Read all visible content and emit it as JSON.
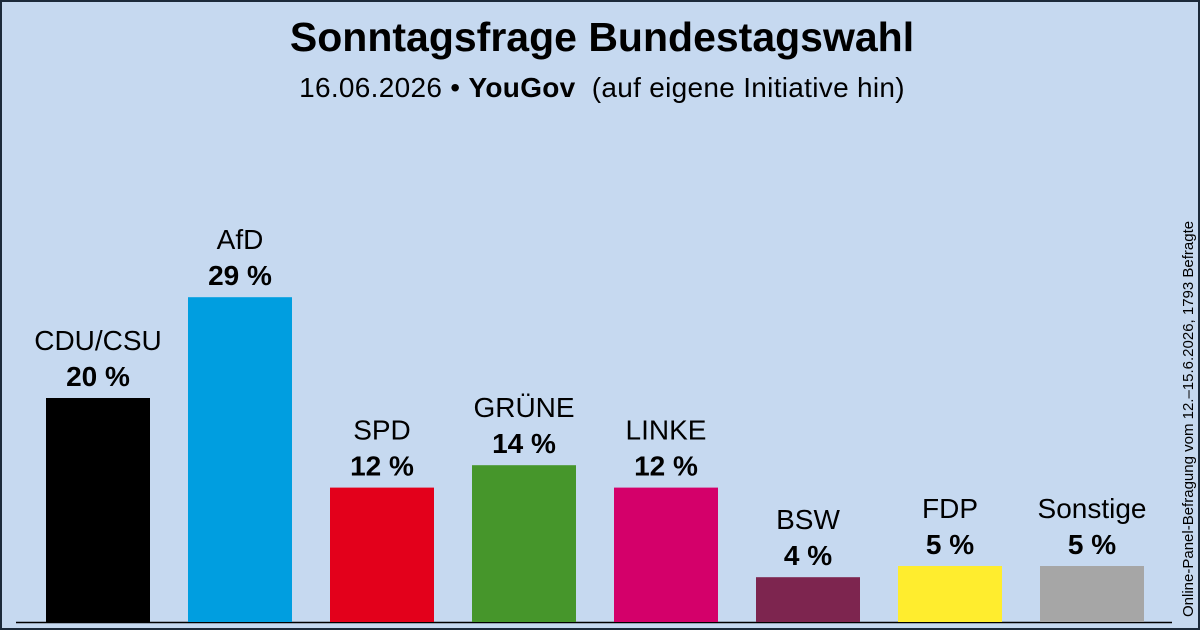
{
  "chart_data": {
    "type": "bar",
    "title": "Sonntagsfrage Bundestagswahl",
    "subtitle": {
      "date": "16.06.2026 •",
      "institute": "YouGov",
      "note": "(auf eigene Initiative hin)"
    },
    "side_note": "Online-Panel-Befragung vom 12.–15.6.2026, 1793 Befragte",
    "categories": [
      "CDU/CSU",
      "AfD",
      "SPD",
      "GRÜNE",
      "LINKE",
      "BSW",
      "FDP",
      "Sonstige"
    ],
    "values": [
      20,
      29,
      12,
      14,
      12,
      4,
      5,
      5
    ],
    "value_labels": [
      "20 %",
      "29 %",
      "12 %",
      "14 %",
      "12 %",
      "4 %",
      "5 %",
      "5 %"
    ],
    "colors": [
      "#000000",
      "#009ee0",
      "#e3001b",
      "#46962b",
      "#d4006a",
      "#7d254f",
      "#ffed2e",
      "#a6a6a6"
    ],
    "ylim": [
      0,
      30
    ],
    "grid": false,
    "legend": "none"
  }
}
